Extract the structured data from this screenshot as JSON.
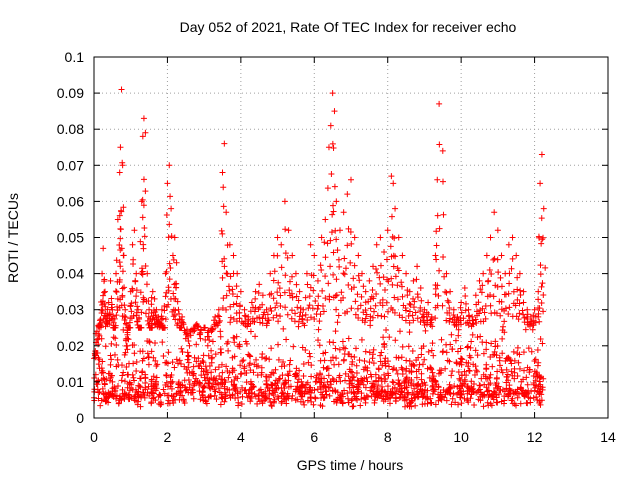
{
  "chart_data": {
    "type": "scatter",
    "title": "Day 052 of 2021, Rate Of TEC Index for receiver echo",
    "xlabel": "GPS time / hours",
    "ylabel": "ROTI / TECUs",
    "xlim": [
      0,
      14
    ],
    "ylim": [
      0,
      0.1
    ],
    "x_ticks": [
      "0",
      "2",
      "4",
      "6",
      "8",
      "10",
      "12",
      "14"
    ],
    "y_ticks": [
      "0",
      "0.01",
      "0.02",
      "0.03",
      "0.04",
      "0.05",
      "0.06",
      "0.07",
      "0.08",
      "0.09",
      "0.1"
    ],
    "grid": true,
    "marker": "plus",
    "color": "#ff0000",
    "series": [
      {
        "x": [
          0.05,
          0.1,
          0.15,
          0.2,
          0.22,
          0.25,
          0.3,
          0.35,
          0.4,
          0.45,
          0.5,
          0.55,
          0.6,
          0.65,
          0.7,
          0.72,
          0.75,
          0.78,
          0.8,
          0.85,
          0.9,
          0.95,
          1.0,
          1.05,
          1.1,
          1.15,
          1.2,
          1.25,
          1.3,
          1.33,
          1.36,
          1.4,
          1.45,
          1.5,
          1.55,
          1.6,
          1.65,
          1.7,
          1.75,
          1.8,
          1.85,
          1.9,
          1.95,
          2.0,
          2.05,
          2.1,
          2.15,
          2.2,
          2.25,
          2.3,
          2.35,
          2.4,
          2.5,
          2.6,
          2.7,
          2.8,
          2.9,
          3.0,
          3.1,
          3.2,
          3.3,
          3.4,
          3.5,
          3.55,
          3.6,
          3.7,
          3.8,
          3.9,
          4.0,
          4.1,
          4.2,
          4.3,
          4.4,
          4.5,
          4.6,
          4.7,
          4.8,
          4.9,
          5.0,
          5.1,
          5.2,
          5.3,
          5.4,
          5.5,
          5.6,
          5.7,
          5.8,
          5.9,
          6.0,
          6.1,
          6.2,
          6.3,
          6.4,
          6.45,
          6.5,
          6.55,
          6.6,
          6.7,
          6.8,
          6.9,
          7.0,
          7.1,
          7.2,
          7.3,
          7.4,
          7.5,
          7.6,
          7.7,
          7.8,
          7.9,
          8.0,
          8.1,
          8.15,
          8.2,
          8.3,
          8.4,
          8.5,
          8.6,
          8.7,
          8.8,
          8.9,
          9.0,
          9.1,
          9.2,
          9.3,
          9.35,
          9.4,
          9.5,
          9.6,
          9.7,
          9.8,
          9.9,
          10.0,
          10.1,
          10.2,
          10.3,
          10.4,
          10.5,
          10.6,
          10.7,
          10.8,
          10.9,
          11.0,
          11.1,
          11.2,
          11.3,
          11.4,
          11.5,
          11.6,
          11.7,
          11.8,
          11.9,
          12.0,
          12.1,
          12.15,
          12.2,
          12.25
        ],
        "y": [
          0.012,
          0.018,
          0.026,
          0.03,
          0.04,
          0.047,
          0.035,
          0.028,
          0.032,
          0.038,
          0.03,
          0.025,
          0.04,
          0.055,
          0.068,
          0.075,
          0.091,
          0.07,
          0.045,
          0.03,
          0.02,
          0.025,
          0.035,
          0.048,
          0.052,
          0.04,
          0.03,
          0.025,
          0.06,
          0.078,
          0.083,
          0.079,
          0.04,
          0.03,
          0.025,
          0.035,
          0.033,
          0.03,
          0.028,
          0.026,
          0.03,
          0.025,
          0.04,
          0.065,
          0.07,
          0.058,
          0.045,
          0.05,
          0.043,
          0.03,
          0.025,
          0.028,
          0.022,
          0.02,
          0.024,
          0.026,
          0.022,
          0.025,
          0.02,
          0.024,
          0.028,
          0.03,
          0.068,
          0.076,
          0.057,
          0.048,
          0.045,
          0.04,
          0.035,
          0.03,
          0.028,
          0.032,
          0.035,
          0.037,
          0.034,
          0.03,
          0.04,
          0.045,
          0.05,
          0.048,
          0.06,
          0.052,
          0.045,
          0.04,
          0.035,
          0.03,
          0.04,
          0.048,
          0.045,
          0.038,
          0.05,
          0.055,
          0.075,
          0.081,
          0.09,
          0.085,
          0.06,
          0.052,
          0.057,
          0.062,
          0.066,
          0.05,
          0.045,
          0.04,
          0.035,
          0.038,
          0.042,
          0.048,
          0.05,
          0.046,
          0.052,
          0.067,
          0.065,
          0.058,
          0.05,
          0.045,
          0.04,
          0.035,
          0.038,
          0.042,
          0.036,
          0.03,
          0.032,
          0.028,
          0.045,
          0.066,
          0.087,
          0.074,
          0.04,
          0.035,
          0.03,
          0.028,
          0.032,
          0.036,
          0.03,
          0.028,
          0.034,
          0.038,
          0.04,
          0.045,
          0.05,
          0.057,
          0.052,
          0.045,
          0.04,
          0.048,
          0.05,
          0.045,
          0.04,
          0.035,
          0.03,
          0.028,
          0.03,
          0.035,
          0.065,
          0.073,
          0.058
        ]
      }
    ],
    "baseline": {
      "x_start": 0,
      "x_end": 12.25,
      "y_min": 0.003,
      "y_max": 0.025
    }
  }
}
